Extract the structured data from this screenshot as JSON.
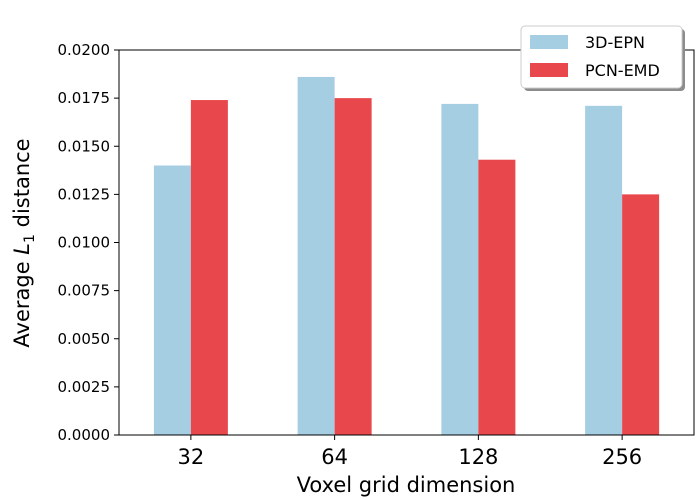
{
  "chart_data": {
    "type": "bar",
    "title": "",
    "xlabel": "Voxel grid dimension",
    "ylabel_prefix": "Average ",
    "ylabel_var": "L",
    "ylabel_sub": "1",
    "ylabel_suffix": " distance",
    "categories": [
      "32",
      "64",
      "128",
      "256"
    ],
    "series": [
      {
        "name": "3D-EPN",
        "color": "#a6cee3",
        "values": [
          0.014,
          0.0186,
          0.0172,
          0.0171
        ]
      },
      {
        "name": "PCN-EMD",
        "color": "#e8484b",
        "values": [
          0.0174,
          0.0175,
          0.0143,
          0.0125
        ]
      }
    ],
    "ylim": [
      0,
      0.02
    ],
    "yticks": [
      "0.0000",
      "0.0025",
      "0.0050",
      "0.0075",
      "0.0100",
      "0.0125",
      "0.0150",
      "0.0175",
      "0.0200"
    ],
    "grid": false,
    "legend_position": "top-right"
  }
}
